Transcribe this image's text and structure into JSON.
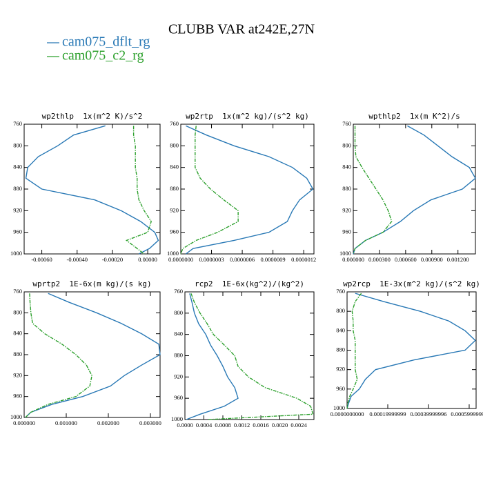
{
  "title": "CLUBB VAR at242E,27N",
  "chart_data": [
    {
      "type": "line",
      "title": "wp2thlp  1x(m^2 K)/s^2",
      "y": [
        763,
        780,
        800,
        820,
        840,
        860,
        880,
        900,
        920,
        940,
        960,
        975,
        990,
        1000
      ],
      "xlim": [
        -0.0007,
        7e-05
      ],
      "xticks": [
        {
          "value": -0.0006,
          "label": "-0.00060"
        },
        {
          "value": -0.0004,
          "label": "-0.00040"
        },
        {
          "value": -0.0002,
          "label": "-0.00020"
        },
        {
          "value": 0,
          "label": "0.00000"
        }
      ],
      "ylim": [
        1000,
        760
      ],
      "yticks": [
        760,
        800,
        840,
        880,
        920,
        960,
        1000
      ],
      "series": [
        {
          "name": "cam075_dflt_rg",
          "color": "#2878b5",
          "values": [
            -0.00024,
            -0.00042,
            -0.00051,
            -0.00062,
            -0.00068,
            -0.00069,
            -0.0006,
            -0.0003,
            -0.00015,
            -4e-05,
            4e-05,
            6e-05,
            1e-05,
            -5e-05
          ]
        },
        {
          "name": "cam075_c2_rg",
          "color": "#2ca02c",
          "values": [
            -8e-05,
            -8e-05,
            -7e-05,
            -7e-05,
            -7e-05,
            -6e-05,
            -6e-05,
            -5e-05,
            -2e-05,
            2e-05,
            0.0,
            -0.00012,
            -6e-05,
            -2e-05
          ]
        }
      ]
    },
    {
      "type": "line",
      "title": "wp2rtp  1x(m^2 kg)/(s^2 kg)",
      "y": [
        763,
        780,
        800,
        820,
        840,
        860,
        880,
        900,
        920,
        940,
        960,
        975,
        990,
        1000
      ],
      "xlim": [
        0,
        1.3e-06
      ],
      "xticks": [
        {
          "value": 0,
          "label": "0.0000000"
        },
        {
          "value": 3e-07,
          "label": "0.0000003"
        },
        {
          "value": 6e-07,
          "label": "0.0000006"
        },
        {
          "value": 9e-07,
          "label": "0.0000009"
        },
        {
          "value": 1.2e-06,
          "label": "0.0000012"
        }
      ],
      "ylim": [
        1000,
        760
      ],
      "yticks": [
        760,
        800,
        840,
        880,
        920,
        960,
        1000
      ],
      "series": [
        {
          "name": "cam075_dflt_rg",
          "color": "#2878b5",
          "values": [
            5e-08,
            2.5e-07,
            5.2e-07,
            8.6e-07,
            1.09e-06,
            1.23e-06,
            1.29e-06,
            1.16e-06,
            1.09e-06,
            1.04e-06,
            8.6e-07,
            5.2e-07,
            1.2e-07,
            5e-08
          ]
        },
        {
          "name": "cam075_c2_rg",
          "color": "#2ca02c",
          "values": [
            1.5e-07,
            1.4e-07,
            1.4e-07,
            1.4e-07,
            1.4e-07,
            1.9e-07,
            2.9e-07,
            4.2e-07,
            5.6e-07,
            5.6e-07,
            3.6e-07,
            1.5e-07,
            2e-08,
            0
          ]
        }
      ]
    },
    {
      "type": "line",
      "title": "wpthlp2  1x(m K^2)/s",
      "y": [
        763,
        780,
        800,
        820,
        840,
        860,
        880,
        900,
        920,
        940,
        960,
        975,
        990,
        1000
      ],
      "xlim": [
        0,
        0.0014
      ],
      "xticks": [
        {
          "value": 0,
          "label": "0.000000"
        },
        {
          "value": 0.0003,
          "label": "0.000300"
        },
        {
          "value": 0.0006,
          "label": "0.000600"
        },
        {
          "value": 0.0009,
          "label": "0.000900"
        },
        {
          "value": 0.0012,
          "label": "0.001200"
        }
      ],
      "ylim": [
        1000,
        760
      ],
      "yticks": [
        760,
        800,
        840,
        880,
        920,
        960,
        1000
      ],
      "series": [
        {
          "name": "cam075_dflt_rg",
          "color": "#2878b5",
          "values": [
            0.00062,
            0.00081,
            0.00097,
            0.00113,
            0.00133,
            0.0014,
            0.00125,
            0.00089,
            0.00069,
            0.00054,
            0.00034,
            0.00014,
            2e-05,
            0
          ]
        },
        {
          "name": "cam075_c2_rg",
          "color": "#2ca02c",
          "values": [
            2e-05,
            2e-05,
            2e-05,
            3e-05,
            0.0001,
            0.00018,
            0.00026,
            0.00034,
            0.0004,
            0.00044,
            0.00034,
            0.00014,
            2e-05,
            0
          ]
        }
      ]
    },
    {
      "type": "line",
      "title": "wprtp2  1E-6x(m kg)/(s kg)",
      "y": [
        763,
        780,
        800,
        820,
        840,
        860,
        880,
        900,
        920,
        940,
        960,
        975,
        990,
        1000
      ],
      "xlim": [
        0,
        0.00323
      ],
      "xticks": [
        {
          "value": 0,
          "label": "0.000000"
        },
        {
          "value": 0.001,
          "label": "0.001000"
        },
        {
          "value": 0.002,
          "label": "0.002000"
        },
        {
          "value": 0.003,
          "label": "0.003000"
        }
      ],
      "ylim": [
        1000,
        760
      ],
      "yticks": [
        760,
        800,
        840,
        880,
        920,
        960,
        1000
      ],
      "series": [
        {
          "name": "cam075_dflt_rg",
          "color": "#2878b5",
          "values": [
            0.00057,
            0.00107,
            0.00172,
            0.0023,
            0.00279,
            0.0032,
            0.00323,
            0.00279,
            0.00238,
            0.00205,
            0.00139,
            0.00066,
            0.00016,
            3e-05
          ]
        },
        {
          "name": "cam075_c2_rg",
          "color": "#2ca02c",
          "values": [
            0.00013,
            0.00014,
            0.00016,
            0.0002,
            0.00049,
            0.0009,
            0.00123,
            0.00148,
            0.00161,
            0.00156,
            0.00123,
            0.00057,
            0.00016,
            3e-05
          ]
        }
      ]
    },
    {
      "type": "line",
      "title": "rcp2  1E-6x(kg^2)/(kg^2)",
      "y": [
        763,
        780,
        800,
        820,
        840,
        860,
        880,
        900,
        920,
        940,
        960,
        975,
        990,
        1000
      ],
      "xlim": [
        0,
        0.00272
      ],
      "xticks": [
        {
          "value": 0,
          "label": "0.0000"
        },
        {
          "value": 0.0004,
          "label": "0.0004"
        },
        {
          "value": 0.0008,
          "label": "0.0008"
        },
        {
          "value": 0.0012,
          "label": "0.0012"
        },
        {
          "value": 0.0016,
          "label": "0.0016"
        },
        {
          "value": 0.002,
          "label": "0.0020"
        },
        {
          "value": 0.0024,
          "label": "0.0024"
        }
      ],
      "ylim": [
        1000,
        760
      ],
      "yticks": [
        760,
        800,
        840,
        880,
        920,
        960,
        1000
      ],
      "series": [
        {
          "name": "cam075_dflt_rg",
          "color": "#2878b5",
          "values": [
            0.0001,
            0.00015,
            0.0002,
            0.00029,
            0.00044,
            0.00054,
            0.00068,
            0.0008,
            0.0009,
            0.00105,
            0.00112,
            0.00083,
            0.00032,
            3e-05
          ]
        },
        {
          "name": "cam075_c2_rg",
          "color": "#2ca02c",
          "values": [
            0.00013,
            0.0002,
            0.00032,
            0.00047,
            0.0006,
            0.00083,
            0.00105,
            0.00112,
            0.00134,
            0.00169,
            0.00236,
            0.00265,
            0.0027,
            0.0005
          ]
        }
      ]
    },
    {
      "type": "line",
      "title": "wp2rcp  1E-3x(m^2 kg)/(s^2 kg)",
      "y": [
        763,
        780,
        800,
        820,
        840,
        860,
        880,
        900,
        920,
        940,
        960,
        975,
        990,
        1000
      ],
      "xlim": [
        0,
        0.000634
      ],
      "xticks": [
        {
          "value": 0,
          "label": "0.0000000000"
        },
        {
          "value": 0.0002,
          "label": "0.00019999999"
        },
        {
          "value": 0.0004,
          "label": "0.00039999996"
        },
        {
          "value": 0.0006,
          "label": "0.00059999997"
        }
      ],
      "ylim": [
        1000,
        760
      ],
      "yticks": [
        760,
        800,
        840,
        880,
        920,
        960,
        1000
      ],
      "series": [
        {
          "name": "cam075_dflt_rg",
          "color": "#2878b5",
          "values": [
            4e-05,
            0.00018,
            0.00036,
            0.0005,
            0.00058,
            0.00063,
            0.00058,
            0.00033,
            0.00014,
            9e-05,
            6e-05,
            2e-05,
            7e-06,
            0
          ]
        },
        {
          "name": "cam075_c2_rg",
          "color": "#2ca02c",
          "values": [
            7e-05,
            4e-05,
            2.5e-05,
            3e-05,
            3e-05,
            4e-05,
            4e-05,
            4e-05,
            4e-05,
            5e-05,
            3e-05,
            1.3e-05,
            3e-06,
            0
          ]
        }
      ]
    }
  ]
}
